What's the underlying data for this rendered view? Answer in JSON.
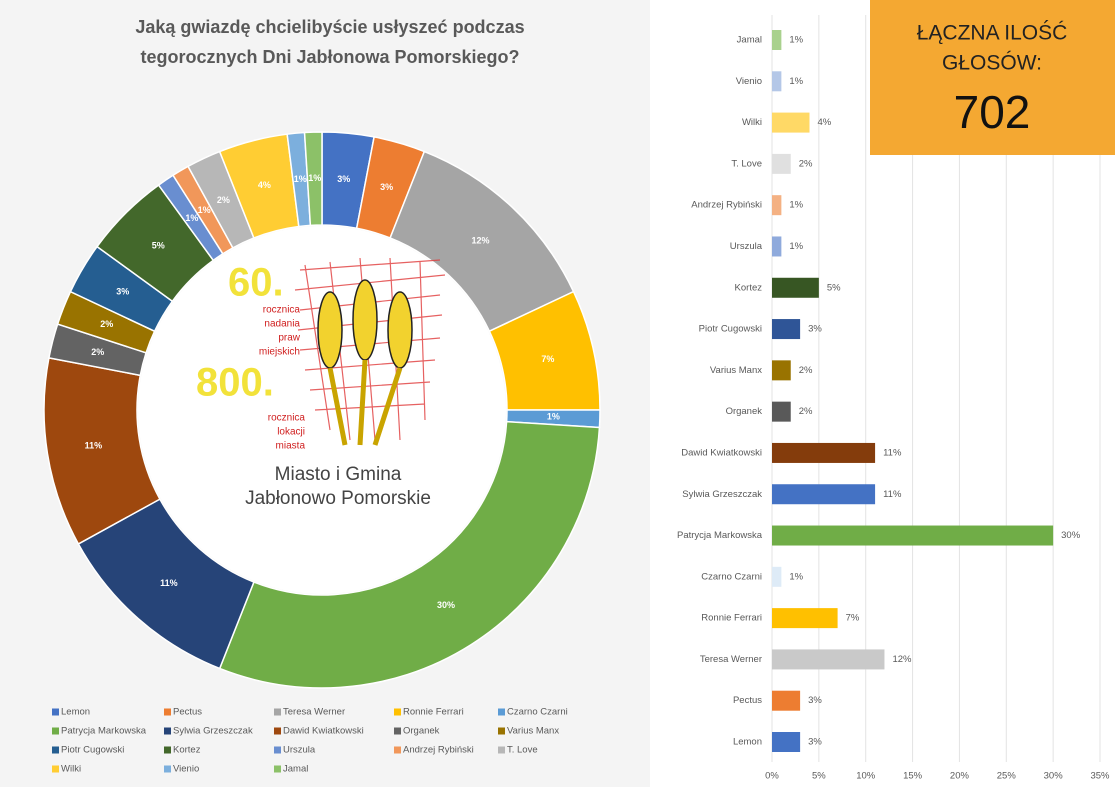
{
  "chart_data": [
    {
      "type": "donut",
      "title": [
        "Jaką gwiazdę chcielibyście usłyszeć podczas",
        "tegorocznych Dni Jabłonowa Pomorskiego?"
      ],
      "categories": [
        "Lemon",
        "Pectus",
        "Teresa Werner",
        "Ronnie Ferrari",
        "Czarno Czarni",
        "Patrycja Markowska",
        "Sylwia Grzeszczak",
        "Dawid Kwiatkowski",
        "Organek",
        "Varius Manx",
        "Piotr Cugowski",
        "Kortez",
        "Urszula",
        "Andrzej Rybiński",
        "T. Love",
        "Wilki",
        "Vienio",
        "Jamal"
      ],
      "values": [
        3,
        3,
        12,
        7,
        1,
        30,
        11,
        11,
        2,
        2,
        3,
        5,
        1,
        1,
        2,
        4,
        1,
        1
      ],
      "value_labels": [
        "3%",
        "3%",
        "12%",
        "7%",
        "1%",
        "30%",
        "11%",
        "11%",
        "2%",
        "2%",
        "3%",
        "5%",
        "1%",
        "1%",
        "2%",
        "4%",
        "1%",
        "1%"
      ],
      "colors": [
        "#4472c4",
        "#ed7d31",
        "#a5a5a5",
        "#ffc000",
        "#5b9bd5",
        "#70ad47",
        "#264478",
        "#9e480e",
        "#636363",
        "#997300",
        "#255e91",
        "#43682b",
        "#698ed0",
        "#f1975a",
        "#b7b7b7",
        "#ffcd33",
        "#7cafdd",
        "#8cc168"
      ],
      "legend": "bottom"
    },
    {
      "type": "bar",
      "orientation": "horizontal",
      "categories": [
        "Lemon",
        "Pectus",
        "Teresa Werner",
        "Ronnie Ferrari",
        "Czarno Czarni",
        "Patrycja Markowska",
        "Sylwia Grzeszczak",
        "Dawid Kwiatkowski",
        "Organek",
        "Varius Manx",
        "Piotr Cugowski",
        "Kortez",
        "Urszula",
        "Andrzej Rybiński",
        "T. Love",
        "Wilki",
        "Vienio",
        "Jamal"
      ],
      "values": [
        3,
        3,
        12,
        7,
        1,
        30,
        11,
        11,
        2,
        2,
        3,
        5,
        1,
        1,
        2,
        4,
        1,
        1
      ],
      "value_labels": [
        "3%",
        "3%",
        "12%",
        "7%",
        "1%",
        "30%",
        "11%",
        "11%",
        "2%",
        "2%",
        "3%",
        "5%",
        "1%",
        "1%",
        "2%",
        "4%",
        "1%",
        "1%"
      ],
      "colors": [
        "#4472c4",
        "#ed7d31",
        "#c9c9c9",
        "#ffc000",
        "#deebf7",
        "#70ad47",
        "#4472c4",
        "#843c0c",
        "#595959",
        "#997300",
        "#2f5597",
        "#375623",
        "#8faadc",
        "#f4b183",
        "#e0e0e0",
        "#ffd966",
        "#b4c7e7",
        "#a9d18e"
      ],
      "xlim": [
        0,
        35
      ],
      "xticks": [
        {
          "value": 0,
          "label": "0%"
        },
        {
          "value": 5,
          "label": "5%"
        },
        {
          "value": 10,
          "label": "10%"
        },
        {
          "value": 15,
          "label": "15%"
        },
        {
          "value": 20,
          "label": "20%"
        },
        {
          "value": 25,
          "label": "25%"
        },
        {
          "value": 30,
          "label": "30%"
        },
        {
          "value": 35,
          "label": "35%"
        }
      ],
      "grid": true
    }
  ],
  "summary": {
    "title": [
      "ŁĄCZNA ILOŚĆ",
      "GŁOSÓW:"
    ],
    "value": 702
  },
  "logo": {
    "big1": "60.",
    "lines1": [
      "rocznica",
      "nadania",
      "praw",
      "miejskich"
    ],
    "big2": "800.",
    "lines2": [
      "rocznica",
      "lokacji",
      "miasta"
    ],
    "name": [
      "Miasto i Gmina",
      "Jabłonowo Pomorskie"
    ]
  }
}
